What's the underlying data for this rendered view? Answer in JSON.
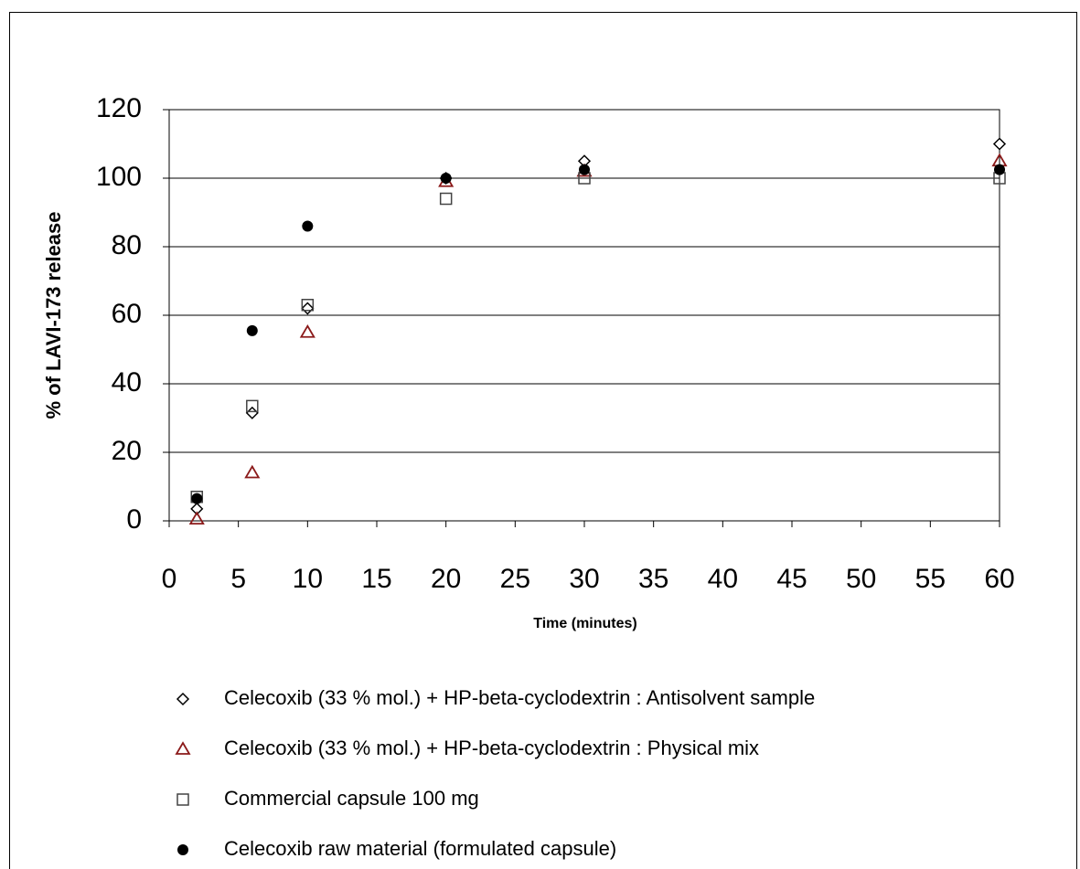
{
  "chart_data": {
    "type": "scatter",
    "xlabel": "Time (minutes)",
    "ylabel": "% of LAVI-173 release",
    "xlim": [
      0,
      60
    ],
    "xticks": [
      0,
      5,
      10,
      15,
      20,
      25,
      30,
      35,
      40,
      45,
      50,
      55,
      60
    ],
    "ylim": [
      0,
      120
    ],
    "yticks": [
      0,
      20,
      40,
      60,
      80,
      100,
      120
    ],
    "grid": true,
    "legend": "bottom",
    "series": [
      {
        "name": "Celecoxib (33 % mol.) + HP-beta-cyclodextrin : Antisolvent sample",
        "color": "#000000",
        "marker": "diamond",
        "x": [
          2,
          6,
          10,
          20,
          30,
          60
        ],
        "values": [
          3.5,
          31.5,
          62,
          100,
          105,
          110
        ]
      },
      {
        "name": "Celecoxib (33 % mol.) + HP-beta-cyclodextrin : Physical mix",
        "color": "#8b1a1a",
        "marker": "triangle",
        "x": [
          2,
          6,
          10,
          20,
          30,
          60
        ],
        "values": [
          0.5,
          14,
          55,
          99,
          102,
          105
        ]
      },
      {
        "name": "Commercial capsule 100 mg",
        "color": "#444444",
        "marker": "square",
        "x": [
          2,
          6,
          10,
          20,
          30,
          60
        ],
        "values": [
          7,
          33.5,
          63,
          94,
          100,
          100
        ]
      },
      {
        "name": "Celecoxib raw material (formulated capsule)",
        "color": "#000000",
        "marker": "circle",
        "x": [
          2,
          6,
          10,
          20,
          30,
          60
        ],
        "values": [
          6.5,
          55.5,
          86,
          100,
          102.5,
          102.5
        ]
      }
    ]
  }
}
